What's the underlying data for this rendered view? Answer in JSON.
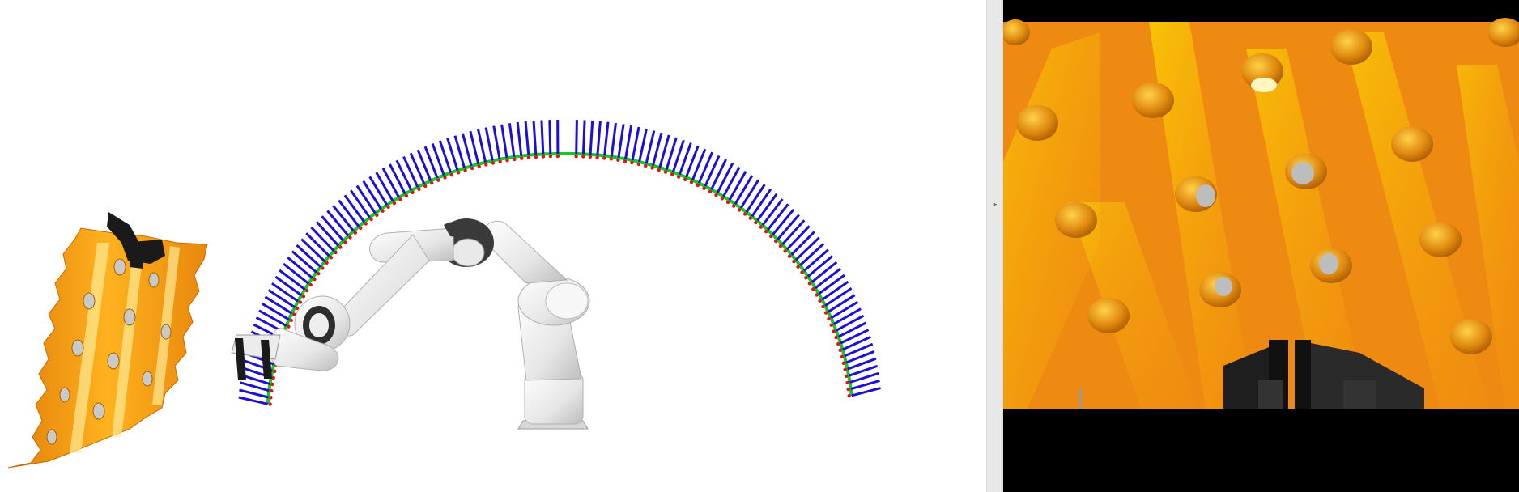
{
  "viewport": {
    "background": "#ffffff"
  },
  "splitter": {
    "arrow_glyph": "▸"
  },
  "camera": {
    "letterbox_color": "#000000",
    "surface_color": "#ee8a12",
    "highlight_color": "#ffe100"
  },
  "trajectory": {
    "frame_z_color": "#1c10d6",
    "frame_x_color": "#e3101a",
    "path_color": "#18c81c",
    "frame_count": 120
  },
  "robot": {
    "link_color": "#f2f2f2",
    "joint_cap_color": "#3a3a3a"
  },
  "workpiece": {
    "color": "#f09a10",
    "hole_color": "#c9c9c9"
  }
}
